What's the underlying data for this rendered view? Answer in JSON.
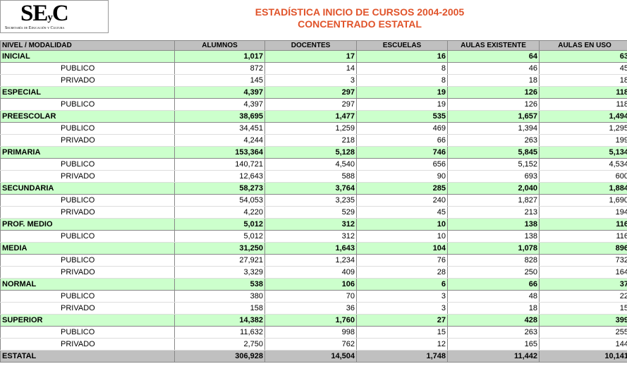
{
  "logo": {
    "big": "SE",
    "small": "y",
    "last": "C",
    "caption": "Secretaría de Educación y Cultura"
  },
  "title": "ESTADÍSTICA INICIO DE CURSOS 2004-2005",
  "subtitle": "CONCENTRADO ESTATAL",
  "table": {
    "headers": [
      "NIVEL / MODALIDAD",
      "ALUMNOS",
      "DOCENTES",
      "ESCUELAS",
      "AULAS EXISTENTE",
      "AULAS EN USO"
    ],
    "groups": [
      {
        "name": "INICIAL",
        "values": [
          "1,017",
          "17",
          "16",
          "64",
          "63"
        ],
        "rows": [
          {
            "name": "PUBLICO",
            "values": [
              "872",
              "14",
              "8",
              "46",
              "45"
            ]
          },
          {
            "name": "PRIVADO",
            "values": [
              "145",
              "3",
              "8",
              "18",
              "18"
            ]
          }
        ]
      },
      {
        "name": "ESPECIAL",
        "values": [
          "4,397",
          "297",
          "19",
          "126",
          "118"
        ],
        "rows": [
          {
            "name": "PUBLICO",
            "values": [
              "4,397",
              "297",
              "19",
              "126",
              "118"
            ]
          }
        ]
      },
      {
        "name": "PREESCOLAR",
        "values": [
          "38,695",
          "1,477",
          "535",
          "1,657",
          "1,494"
        ],
        "rows": [
          {
            "name": "PUBLICO",
            "values": [
              "34,451",
              "1,259",
              "469",
              "1,394",
              "1,295"
            ]
          },
          {
            "name": "PRIVADO",
            "values": [
              "4,244",
              "218",
              "66",
              "263",
              "199"
            ]
          }
        ]
      },
      {
        "name": "PRIMARIA",
        "values": [
          "153,364",
          "5,128",
          "746",
          "5,845",
          "5,134"
        ],
        "rows": [
          {
            "name": "PUBLICO",
            "values": [
              "140,721",
              "4,540",
              "656",
              "5,152",
              "4,534"
            ]
          },
          {
            "name": "PRIVADO",
            "values": [
              "12,643",
              "588",
              "90",
              "693",
              "600"
            ]
          }
        ]
      },
      {
        "name": "SECUNDARIA",
        "values": [
          "58,273",
          "3,764",
          "285",
          "2,040",
          "1,884"
        ],
        "rows": [
          {
            "name": "PUBLICO",
            "values": [
              "54,053",
              "3,235",
              "240",
              "1,827",
              "1,690"
            ]
          },
          {
            "name": "PRIVADO",
            "values": [
              "4,220",
              "529",
              "45",
              "213",
              "194"
            ]
          }
        ]
      },
      {
        "name": "PROF. MEDIO",
        "values": [
          "5,012",
          "312",
          "10",
          "138",
          "116"
        ],
        "rows": [
          {
            "name": "PUBLICO",
            "values": [
              "5,012",
              "312",
              "10",
              "138",
              "116"
            ]
          }
        ]
      },
      {
        "name": "MEDIA",
        "values": [
          "31,250",
          "1,643",
          "104",
          "1,078",
          "896"
        ],
        "rows": [
          {
            "name": "PUBLICO",
            "values": [
              "27,921",
              "1,234",
              "76",
              "828",
              "732"
            ]
          },
          {
            "name": "PRIVADO",
            "values": [
              "3,329",
              "409",
              "28",
              "250",
              "164"
            ]
          }
        ]
      },
      {
        "name": "NORMAL",
        "values": [
          "538",
          "106",
          "6",
          "66",
          "37"
        ],
        "rows": [
          {
            "name": "PUBLICO",
            "values": [
              "380",
              "70",
              "3",
              "48",
              "22"
            ]
          },
          {
            "name": "PRIVADO",
            "values": [
              "158",
              "36",
              "3",
              "18",
              "15"
            ]
          }
        ]
      },
      {
        "name": "SUPERIOR",
        "values": [
          "14,382",
          "1,760",
          "27",
          "428",
          "399"
        ],
        "rows": [
          {
            "name": "PUBLICO",
            "values": [
              "11,632",
              "998",
              "15",
              "263",
              "255"
            ]
          },
          {
            "name": "PRIVADO",
            "values": [
              "2,750",
              "762",
              "12",
              "165",
              "144"
            ]
          }
        ]
      }
    ],
    "total": {
      "name": "ESTATAL",
      "values": [
        "306,928",
        "14,504",
        "1,748",
        "11,442",
        "10,141"
      ]
    }
  }
}
